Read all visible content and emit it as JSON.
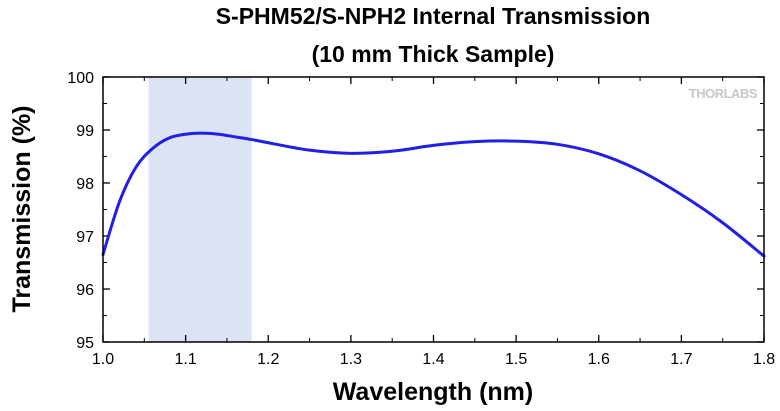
{
  "chart_data": {
    "type": "line",
    "title": "S-PHM52/S-NPH2 Internal Transmission",
    "subtitle": "(10 mm Thick Sample)",
    "xlabel": "Wavelength (nm)",
    "ylabel": "Transmission (%)",
    "xlim": [
      1.0,
      1.8
    ],
    "ylim": [
      95,
      100
    ],
    "x_ticks": [
      "1.0",
      "1.1",
      "1.2",
      "1.3",
      "1.4",
      "1.5",
      "1.6",
      "1.7",
      "1.8"
    ],
    "y_ticks": [
      "95",
      "96",
      "97",
      "98",
      "99",
      "100"
    ],
    "highlight_band": {
      "x_start": 1.055,
      "x_end": 1.18,
      "color": "#dce3f5"
    },
    "grid": false,
    "watermark": "THORLABS",
    "series": [
      {
        "color": "#1f1fe6",
        "x": [
          1.0,
          1.02,
          1.04,
          1.06,
          1.08,
          1.1,
          1.12,
          1.14,
          1.16,
          1.18,
          1.2,
          1.25,
          1.3,
          1.35,
          1.4,
          1.45,
          1.5,
          1.55,
          1.6,
          1.65,
          1.7,
          1.75,
          1.8
        ],
        "y": [
          96.65,
          97.65,
          98.3,
          98.65,
          98.85,
          98.92,
          98.94,
          98.92,
          98.87,
          98.82,
          98.76,
          98.62,
          98.56,
          98.6,
          98.71,
          98.78,
          98.79,
          98.73,
          98.55,
          98.23,
          97.78,
          97.25,
          96.62
        ]
      }
    ]
  }
}
